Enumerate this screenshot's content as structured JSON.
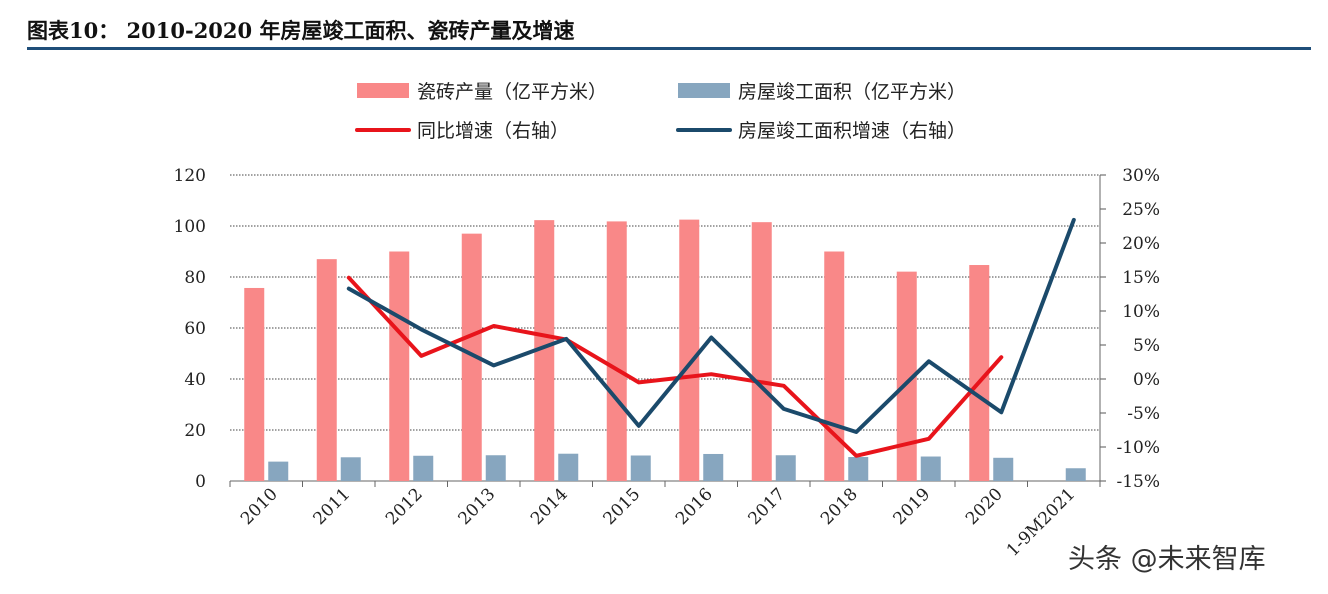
{
  "title": "图表10：  2010-2020 年房屋竣工面积、瓷砖产量及增速",
  "watermark": "头条 @未来智库",
  "colors": {
    "tile_bar": "#f98888",
    "completion_bar": "#87a6bf",
    "yoy_line": "#e8141b",
    "completion_growth_line": "#1b4a6b",
    "title_rule": "#1f4e79"
  },
  "chart_data": {
    "type": "bar",
    "categories": [
      "2010",
      "2011",
      "2012",
      "2013",
      "2014",
      "2015",
      "2016",
      "2017",
      "2018",
      "2019",
      "2020",
      "1-9M2021"
    ],
    "series": [
      {
        "name": "瓷砖产量（亿平方米）",
        "type": "bar",
        "axis": "left",
        "values": [
          75.7,
          87,
          90,
          97,
          102.3,
          101.8,
          102.5,
          101.5,
          90,
          82.1,
          84.7,
          null
        ]
      },
      {
        "name": "房屋竣工面积（亿平方米）",
        "type": "bar",
        "axis": "left",
        "values": [
          7.6,
          9.3,
          9.9,
          10.1,
          10.7,
          10.0,
          10.6,
          10.1,
          9.4,
          9.6,
          9.1,
          5.0
        ]
      },
      {
        "name": "同比增速（右轴）",
        "type": "line",
        "axis": "right",
        "values": [
          null,
          14.9,
          3.4,
          7.8,
          5.8,
          -0.5,
          0.7,
          -1.0,
          -11.3,
          -8.8,
          3.2,
          null
        ]
      },
      {
        "name": "房屋竣工面积增速（右轴）",
        "type": "line",
        "axis": "right",
        "values": [
          null,
          13.3,
          7.3,
          2.0,
          5.9,
          -6.9,
          6.1,
          -4.4,
          -7.8,
          2.6,
          -4.9,
          23.4
        ]
      }
    ],
    "left_axis": {
      "ylim": [
        0,
        120
      ],
      "ticks": [
        "0",
        "20",
        "40",
        "60",
        "80",
        "100",
        "120"
      ]
    },
    "right_axis": {
      "ylim": [
        -15,
        30
      ],
      "ticks": [
        "-15%",
        "-10%",
        "-5%",
        "0%",
        "5%",
        "10%",
        "15%",
        "20%",
        "25%",
        "30%"
      ]
    },
    "grid": true,
    "legend_position": "top"
  }
}
